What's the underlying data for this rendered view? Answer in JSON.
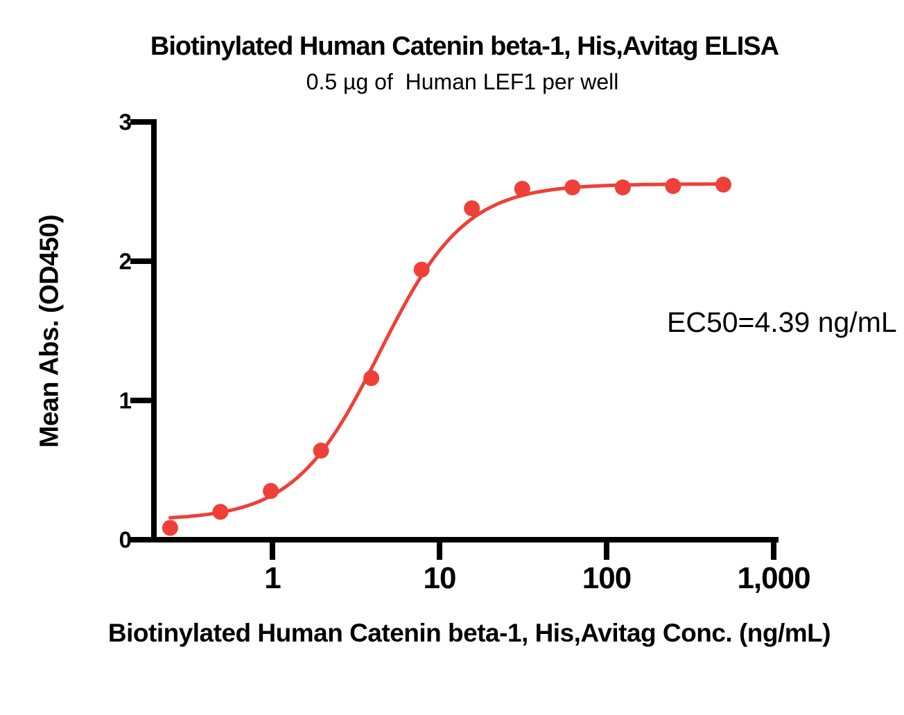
{
  "figure": {
    "background": "#FFFFFF",
    "text_color": "#000000",
    "axis_color": "#000000"
  },
  "chart_data": {
    "type": "scatter",
    "title": "Biotinylated Human Catenin beta-1, His,Avitag ELISA",
    "subtitle": "0.5 µg of  Human LEF1 per well",
    "xlabel": "Biotinylated Human Catenin beta-1, His,Avitag Conc. (ng/mL)",
    "ylabel": "Mean Abs. (OD450)",
    "annotation": "EC50=4.39 ng/mL",
    "x_scale": "log10",
    "xlim": [
      0.19,
      1100
    ],
    "ylim": [
      0,
      3
    ],
    "grid": "off",
    "legend_position": "none",
    "xticks": [
      {
        "value": 1,
        "label": "1"
      },
      {
        "value": 10,
        "label": "10"
      },
      {
        "value": 100,
        "label": "100"
      },
      {
        "value": 1000,
        "label": "1,000"
      }
    ],
    "yticks": [
      {
        "value": 0,
        "label": "0"
      },
      {
        "value": 1,
        "label": "1"
      },
      {
        "value": 2,
        "label": "2"
      },
      {
        "value": 3,
        "label": "3"
      }
    ],
    "series": [
      {
        "name": "Biotinylated Human Catenin beta-1, His,Avitag",
        "marker": "circle",
        "marker_color": "#EE4038",
        "line_color": "#EE4038",
        "x_ng_ml": [
          0.244,
          0.488,
          0.977,
          1.953,
          3.906,
          7.813,
          15.625,
          31.25,
          62.5,
          125,
          250,
          500
        ],
        "y_od450": [
          0.085,
          0.2,
          0.35,
          0.64,
          1.16,
          1.94,
          2.38,
          2.52,
          2.53,
          2.53,
          2.54,
          2.55
        ]
      }
    ],
    "fit_curve": {
      "model": "4PL",
      "ec50_ng_ml": 4.39,
      "hill": 1.7,
      "bottom": 0.14,
      "top": 2.555,
      "x_draw_range": [
        0.244,
        500
      ]
    }
  }
}
